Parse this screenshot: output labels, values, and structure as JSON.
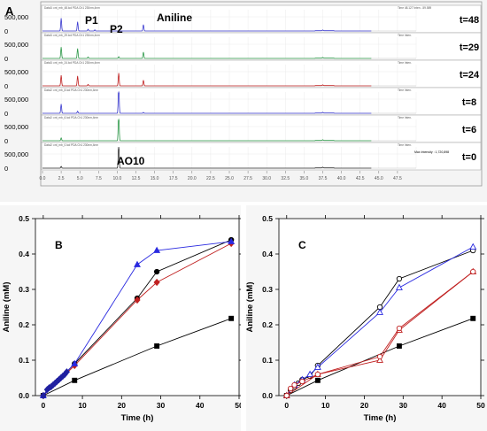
{
  "panel_a": {
    "letter": "A",
    "annotations": {
      "p1": "P1",
      "p2": "P2",
      "aniline": "Aniline",
      "ao10": "AO10"
    },
    "y_tick_labels": [
      "0",
      "500,000"
    ],
    "x_tick_labels": [
      "0.0",
      "2.5",
      "5.0",
      "7.5",
      "10.0",
      "12.5",
      "15.0",
      "17.5",
      "20.0",
      "22.5",
      "25.0",
      "27.5",
      "30.0",
      "32.5",
      "35.0",
      "37.5",
      "40.0",
      "42.5",
      "45.0",
      "47.5"
    ],
    "x_range": [
      0,
      50
    ],
    "max_intensity_text": "Max Intensity : 1,720,898",
    "traces": [
      {
        "label": "t=48",
        "header": "Data3: cnt_mb_48.lcd PDA Ch1 230nm,4nm",
        "right_header": "Time  48.127    Inten.   -59.589",
        "color": "#3a3ad0",
        "peaks": [
          [
            2.5,
            0.9
          ],
          [
            4.7,
            0.65
          ],
          [
            6.1,
            0.12
          ],
          [
            7.0,
            0.08
          ],
          [
            13.5,
            0.45
          ],
          [
            37.5,
            0.05
          ]
        ]
      },
      {
        "label": "t=29",
        "header": "Data3: cnt_mb_29.lcd PDA Ch1 230nm,4nm",
        "right_header": "Time    Inten.",
        "color": "#2e9a4a",
        "peaks": [
          [
            2.5,
            0.8
          ],
          [
            4.7,
            0.7
          ],
          [
            6.1,
            0.1
          ],
          [
            10.2,
            0.12
          ],
          [
            13.5,
            0.45
          ],
          [
            37.5,
            0.05
          ]
        ]
      },
      {
        "label": "t=24",
        "header": "Data3: cnt_mb_24.lcd PDA Ch1 230nm,4nm",
        "right_header": "Time    Inten.",
        "color": "#c02020",
        "peaks": [
          [
            2.5,
            0.75
          ],
          [
            4.7,
            0.7
          ],
          [
            6.1,
            0.1
          ],
          [
            10.2,
            0.9
          ],
          [
            13.5,
            0.4
          ],
          [
            37.5,
            0.05
          ]
        ]
      },
      {
        "label": "t=8",
        "header": "Data2: cnt_mb_8.lcd PDA Ch1 230nm,4nm",
        "right_header": "Time    Inten.",
        "color": "#3a3ad0",
        "peaks": [
          [
            2.5,
            0.65
          ],
          [
            4.7,
            0.15
          ],
          [
            10.2,
            2.0
          ],
          [
            13.5,
            0.06
          ],
          [
            37.5,
            0.05
          ]
        ]
      },
      {
        "label": "t=6",
        "header": "Data2: cnt_mb_6.lcd PDA Ch1 230nm,4nm",
        "right_header": "Time    Inten.",
        "color": "#2e9a4a",
        "peaks": [
          [
            2.5,
            0.2
          ],
          [
            10.2,
            2.0
          ],
          [
            37.5,
            0.05
          ]
        ]
      },
      {
        "label": "t=0",
        "header": "Data2: cnt_mb_0.lcd PDA Ch1 230nm,4nm",
        "right_header": "Time    Inten.",
        "color": "#303030",
        "peaks": [
          [
            2.5,
            0.12
          ],
          [
            10.2,
            1.8
          ],
          [
            37.5,
            0.05
          ]
        ]
      }
    ]
  },
  "chart_data": [
    {
      "type": "line",
      "panel": "B",
      "xlabel": "Time (h)",
      "ylabel": "Aniline (mM)",
      "xlim": [
        -2,
        50
      ],
      "ylim": [
        0,
        0.5
      ],
      "x_ticks": [
        "0",
        "10",
        "20",
        "30",
        "40",
        "50"
      ],
      "y_ticks": [
        "0.0",
        "0.1",
        "0.2",
        "0.3",
        "0.4",
        "0.5"
      ],
      "series": [
        {
          "color": "#000000",
          "marker": "filled-square",
          "x": [
            0,
            8,
            29,
            48
          ],
          "y": [
            0.0,
            0.043,
            0.14,
            0.218
          ]
        },
        {
          "color": "#000000",
          "marker": "filled-circle",
          "x": [
            0,
            8,
            24,
            29,
            48
          ],
          "y": [
            0.0,
            0.09,
            0.275,
            0.35,
            0.44
          ]
        },
        {
          "color": "#c02020",
          "marker": "filled-diamond",
          "x": [
            0,
            8,
            24,
            29,
            48
          ],
          "y": [
            0.0,
            0.085,
            0.27,
            0.32,
            0.43
          ]
        },
        {
          "color": "#2a2ae0",
          "marker": "filled-triangle",
          "x": [
            0,
            8,
            24,
            29,
            48
          ],
          "y": [
            0.0,
            0.09,
            0.37,
            0.41,
            0.435
          ]
        },
        {
          "color": "#2020a0",
          "marker": "filled-diamond",
          "x": [
            0,
            1,
            1.5,
            2,
            2.5,
            3,
            3.5,
            4,
            4.5,
            5,
            5.5,
            6
          ],
          "y": [
            0.0,
            0.017,
            0.022,
            0.025,
            0.03,
            0.035,
            0.04,
            0.045,
            0.05,
            0.055,
            0.06,
            0.067
          ]
        }
      ]
    },
    {
      "type": "line",
      "panel": "C",
      "xlabel": "Time (h)",
      "ylabel": "Aniline (mM)",
      "xlim": [
        -2,
        50
      ],
      "ylim": [
        0,
        0.5
      ],
      "x_ticks": [
        "0",
        "10",
        "20",
        "30",
        "40",
        "50"
      ],
      "y_ticks": [
        "0.0",
        "0.1",
        "0.2",
        "0.3",
        "0.4",
        "0.5"
      ],
      "series": [
        {
          "color": "#000000",
          "marker": "filled-square",
          "x": [
            0,
            8,
            29,
            48
          ],
          "y": [
            0.0,
            0.043,
            0.14,
            0.218
          ]
        },
        {
          "color": "#000000",
          "marker": "open-circle",
          "x": [
            0,
            1,
            2,
            3,
            4,
            6,
            8,
            24,
            29,
            48
          ],
          "y": [
            0.0,
            0.015,
            0.025,
            0.035,
            0.045,
            0.055,
            0.085,
            0.25,
            0.33,
            0.41
          ]
        },
        {
          "color": "#2a2ae0",
          "marker": "open-triangle",
          "x": [
            0,
            2,
            4,
            6,
            8,
            24,
            29,
            48
          ],
          "y": [
            0.0,
            0.03,
            0.045,
            0.06,
            0.08,
            0.235,
            0.305,
            0.42
          ]
        },
        {
          "color": "#c02020",
          "marker": "open-triangle",
          "x": [
            0,
            8,
            24,
            29,
            48
          ],
          "y": [
            0.0,
            0.06,
            0.1,
            0.185,
            0.35
          ]
        },
        {
          "color": "#c02020",
          "marker": "open-circle",
          "x": [
            0,
            1,
            2,
            4,
            8,
            24,
            29,
            48
          ],
          "y": [
            0.0,
            0.02,
            0.03,
            0.04,
            0.06,
            0.11,
            0.19,
            0.35
          ]
        }
      ]
    }
  ]
}
